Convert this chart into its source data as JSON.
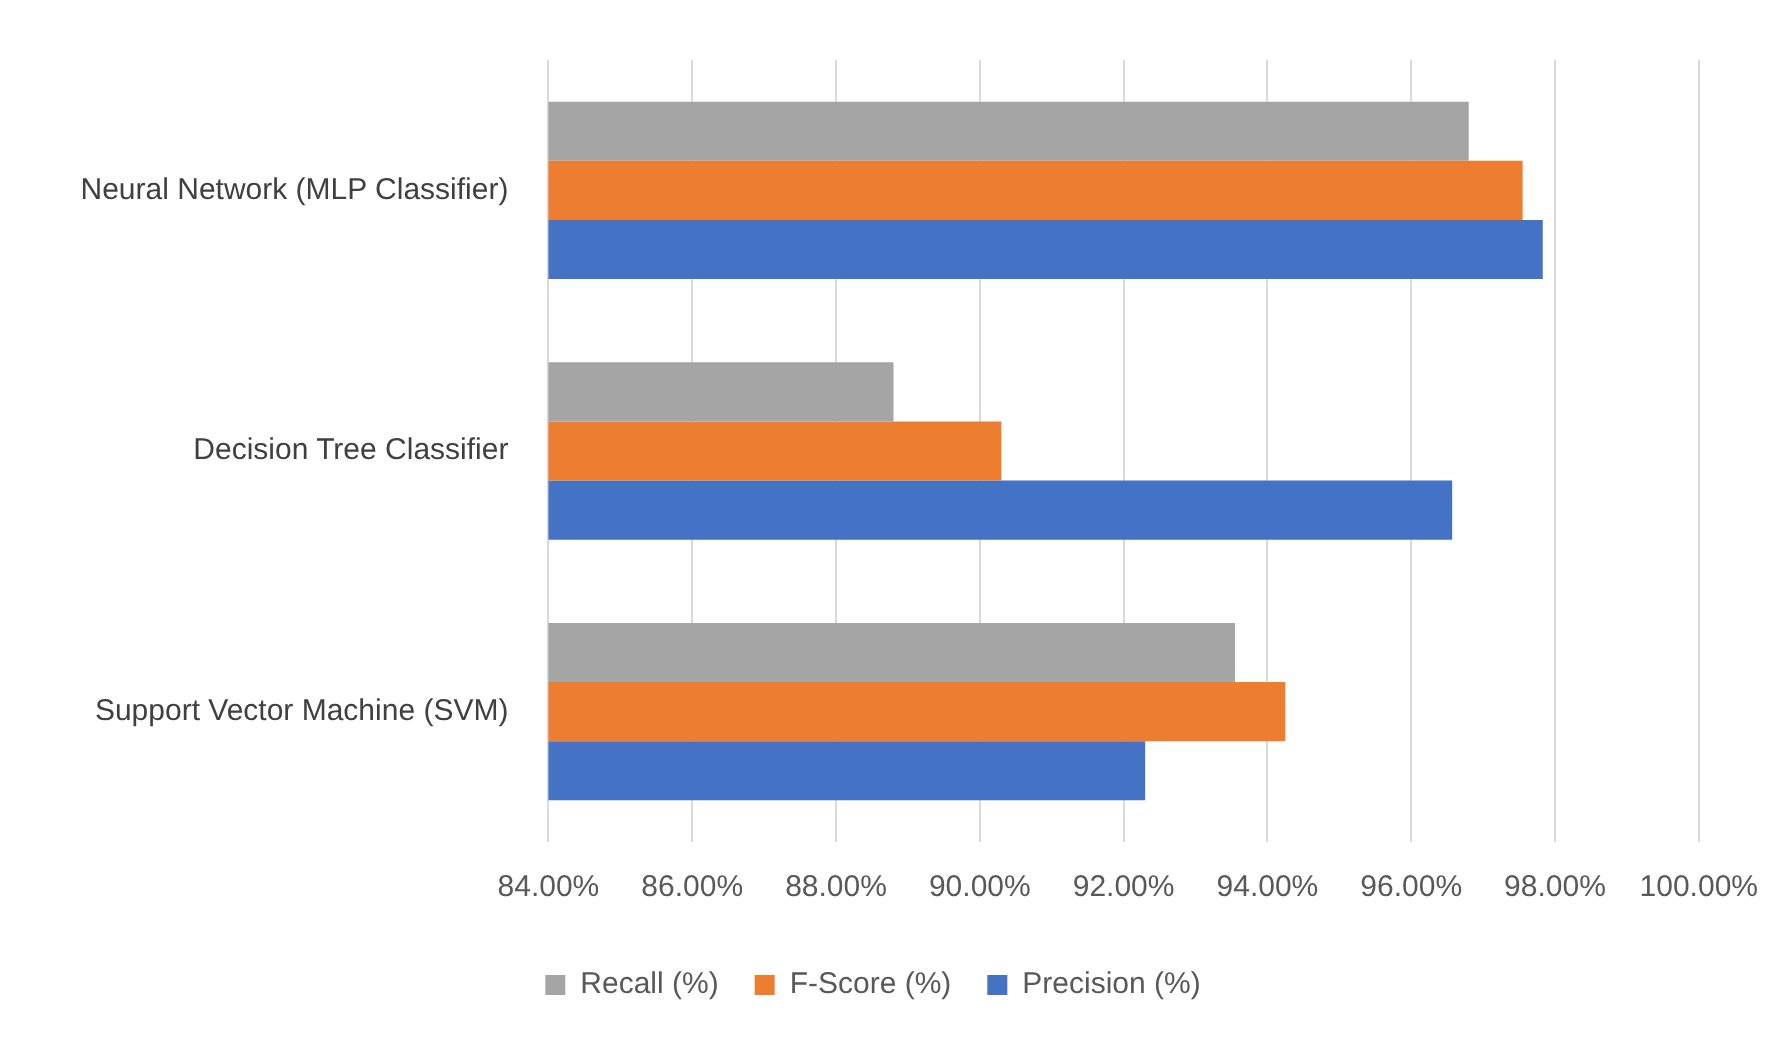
{
  "chart_data": {
    "type": "bar",
    "orientation": "horizontal",
    "categories": [
      "Neural Network (MLP Classifier)",
      "Decision Tree Classifier",
      "Support Vector Machine (SVM)"
    ],
    "series": [
      {
        "name": "Recall (%)",
        "color": "#a5a5a5",
        "values": [
          96.8,
          88.8,
          93.55
        ]
      },
      {
        "name": "F-Score (%)",
        "color": "#ed7d31",
        "values": [
          97.55,
          90.3,
          94.25
        ]
      },
      {
        "name": "Precision (%)",
        "color": "#4472c4",
        "values": [
          97.83,
          96.57,
          92.3
        ]
      }
    ],
    "xlim": [
      84,
      100
    ],
    "xticks": [
      {
        "value": 84,
        "label": "84.00%"
      },
      {
        "value": 86,
        "label": "86.00%"
      },
      {
        "value": 88,
        "label": "88.00%"
      },
      {
        "value": 90,
        "label": "90.00%"
      },
      {
        "value": 92,
        "label": "92.00%"
      },
      {
        "value": 94,
        "label": "94.00%"
      },
      {
        "value": 96,
        "label": "96.00%"
      },
      {
        "value": 98,
        "label": "98.00%"
      },
      {
        "value": 100,
        "label": "100.00%"
      }
    ],
    "grid": "x",
    "legend": "bottom"
  }
}
